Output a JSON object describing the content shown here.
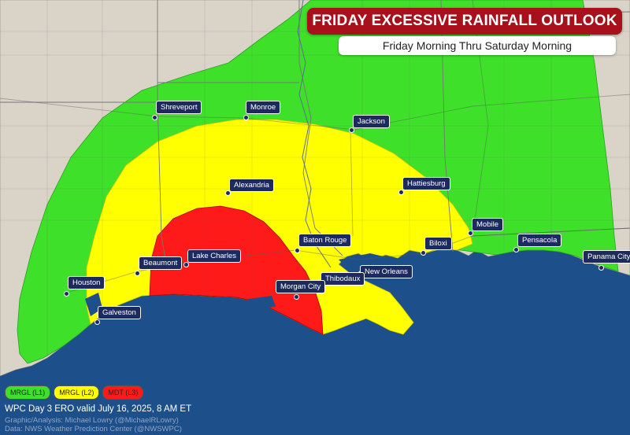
{
  "title": "FRIDAY EXCESSIVE RAINFALL OUTLOOK",
  "subtitle": "Friday Morning Thru Saturday Morning",
  "colors": {
    "ocean": "#1d4f8a",
    "land": "#d9d3c8",
    "marginal": "#3ee02a",
    "slight": "#ffff00",
    "moderate": "#ff1a1a",
    "title_banner": "#a8111b",
    "city_label": "#1c2a5e"
  },
  "cities": [
    {
      "id": "shreveport",
      "name": "Shreveport"
    },
    {
      "id": "monroe",
      "name": "Monroe"
    },
    {
      "id": "jackson",
      "name": "Jackson"
    },
    {
      "id": "alexandria",
      "name": "Alexandria"
    },
    {
      "id": "hattiesburg",
      "name": "Hattiesburg"
    },
    {
      "id": "mobile",
      "name": "Mobile"
    },
    {
      "id": "pensacola",
      "name": "Pensacola"
    },
    {
      "id": "panama-city",
      "name": "Panama City"
    },
    {
      "id": "baton-rouge",
      "name": "Baton Rouge"
    },
    {
      "id": "biloxi",
      "name": "Biloxi"
    },
    {
      "id": "new-orleans",
      "name": "New Orleans"
    },
    {
      "id": "thibodaux",
      "name": "Thibodaux"
    },
    {
      "id": "morgan-city",
      "name": "Morgan City"
    },
    {
      "id": "lake-charles",
      "name": "Lake Charles"
    },
    {
      "id": "beaumont",
      "name": "Beaumont"
    },
    {
      "id": "houston",
      "name": "Houston"
    },
    {
      "id": "galveston",
      "name": "Galveston"
    }
  ],
  "legend": [
    {
      "label": "MRGL (L1)",
      "color": "#3ee02a"
    },
    {
      "label": "MRGL (L2)",
      "color": "#ffff00"
    },
    {
      "label": "MDT (L3)",
      "color": "#ff1a1a"
    }
  ],
  "footer": {
    "valid": "WPC Day 3 ERO valid July 16, 2025, 8 AM ET",
    "credit": "Graphic/Analysis: Michael Lowry (@MichaelRLowry)",
    "source": "Data: NWS Weather Prediction Center (@NWSWPC)"
  }
}
